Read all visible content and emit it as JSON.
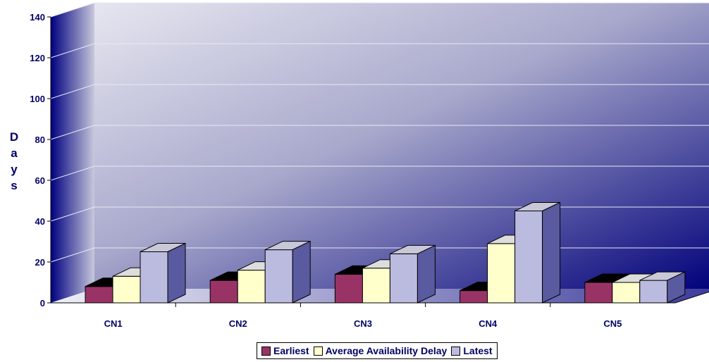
{
  "chart_data": {
    "type": "bar",
    "categories": [
      "CN1",
      "CN2",
      "CN3",
      "CN4",
      "CN5"
    ],
    "series": [
      {
        "name": "Earliest",
        "values": [
          8,
          11,
          14,
          6,
          10
        ],
        "color": "#993366"
      },
      {
        "name": "Average Availability Delay",
        "values": [
          13,
          16,
          17,
          29,
          10
        ],
        "color": "#FFFFCC"
      },
      {
        "name": "Latest",
        "values": [
          25,
          26,
          24,
          45,
          11
        ],
        "color": "#BBBBE0"
      }
    ],
    "yticks": [
      "0",
      "20",
      "40",
      "60",
      "80",
      "100",
      "120",
      "140"
    ],
    "ylim": [
      0,
      140
    ],
    "ylabel": "Days",
    "xlabel": "",
    "title": "",
    "grid": true,
    "legend_position": "bottom",
    "style": "3d-clustered-column",
    "wall_color": "#000080"
  }
}
